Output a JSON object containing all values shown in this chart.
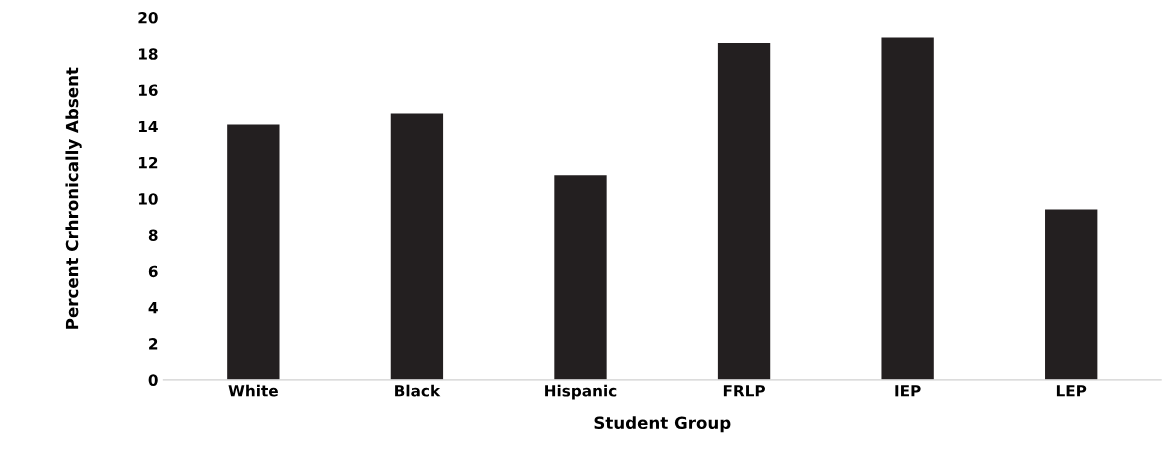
{
  "chart_data": {
    "type": "bar",
    "xlabel": "Student Group",
    "ylabel": "Percent Crhronically Absent",
    "categories": [
      "White",
      "Black",
      "Hispanic",
      "FRLP",
      "IEP",
      "LEP"
    ],
    "values": [
      14.1,
      14.7,
      11.3,
      18.6,
      18.9,
      9.4
    ],
    "color": "#231f20",
    "ylim": [
      0,
      20
    ],
    "yticks": [
      0,
      2,
      4,
      6,
      8,
      10,
      12,
      14,
      16,
      18,
      20
    ],
    "grid": false,
    "legend": false
  }
}
